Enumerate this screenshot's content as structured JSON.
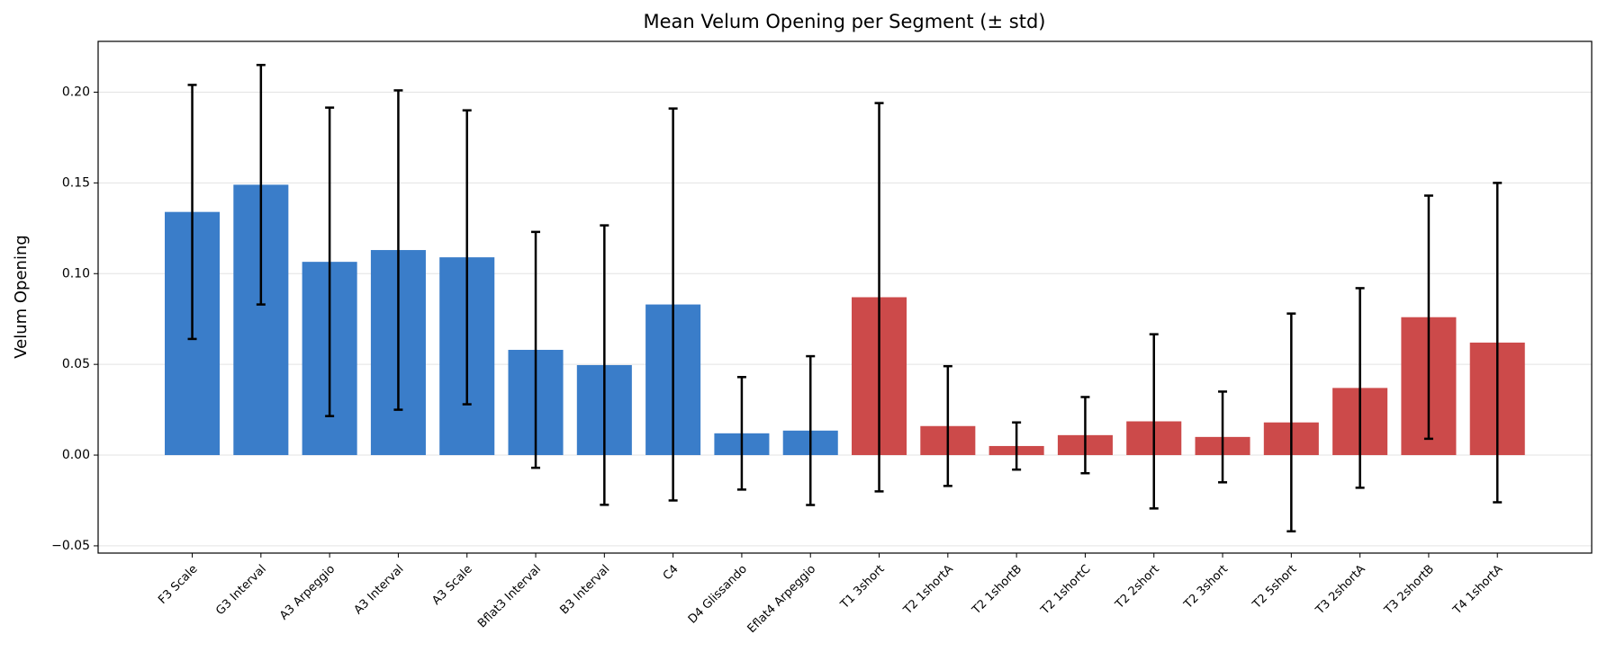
{
  "chart_data": {
    "type": "bar",
    "title": "Mean Velum Opening per Segment (± std)",
    "y_label": "Velum Opening",
    "categories": [
      "F3 Scale",
      "G3 Interval",
      "A3 Arpeggio",
      "A3 Interval",
      "A3 Scale",
      "Bflat3 Interval",
      "B3 Interval",
      "C4",
      "D4 Glissando",
      "Eflat4 Arpeggio",
      "T1 3short",
      "T2 1shortA",
      "T2 1shortB",
      "T2 1shortC",
      "T2 2short",
      "T2 3short",
      "T2 5short",
      "T3 2shortA",
      "T3 2shortB",
      "T4 1shortA"
    ],
    "values": [
      0.134,
      0.149,
      0.1065,
      0.113,
      0.109,
      0.058,
      0.0496,
      0.083,
      0.012,
      0.0135,
      0.087,
      0.016,
      0.005,
      0.011,
      0.0186,
      0.01,
      0.018,
      0.037,
      0.076,
      0.062
    ],
    "errors": [
      0.07,
      0.066,
      0.085,
      0.088,
      0.081,
      0.065,
      0.077,
      0.108,
      0.031,
      0.041,
      0.107,
      0.033,
      0.013,
      0.021,
      0.048,
      0.025,
      0.06,
      0.055,
      0.067,
      0.088
    ],
    "colors": [
      "#3a7dc9",
      "#3a7dc9",
      "#3a7dc9",
      "#3a7dc9",
      "#3a7dc9",
      "#3a7dc9",
      "#3a7dc9",
      "#3a7dc9",
      "#3a7dc9",
      "#3a7dc9",
      "#cc4a4a",
      "#cc4a4a",
      "#cc4a4a",
      "#cc4a4a",
      "#cc4a4a",
      "#cc4a4a",
      "#cc4a4a",
      "#cc4a4a",
      "#cc4a4a",
      "#cc4a4a"
    ],
    "ylim": [
      -0.054,
      0.228
    ],
    "yticks": [
      {
        "value": -0.05,
        "label": "−0.05"
      },
      {
        "value": 0,
        "label": "0.00"
      },
      {
        "value": 0.05,
        "label": "0.05"
      },
      {
        "value": 0.1,
        "label": "0.10"
      },
      {
        "value": 0.15,
        "label": "0.15"
      },
      {
        "value": 0.2,
        "label": "0.20"
      }
    ],
    "grid": true
  }
}
